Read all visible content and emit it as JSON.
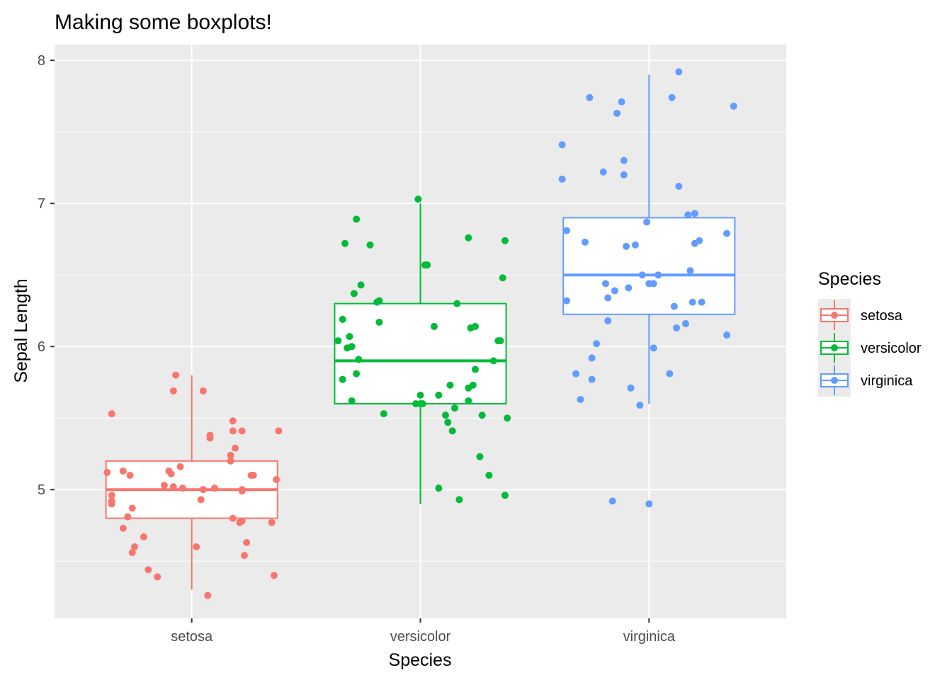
{
  "chart_data": {
    "type": "boxplot",
    "title": "Making some boxplots!",
    "xlabel": "Species",
    "ylabel": "Sepal Length",
    "categories": [
      "setosa",
      "versicolor",
      "virginica"
    ],
    "ylim": [
      4.1,
      8.11
    ],
    "yticks": [
      5,
      6,
      7,
      8
    ],
    "grid": true,
    "legend": {
      "title": "Species",
      "position": "right",
      "entries": [
        "setosa",
        "versicolor",
        "virginica"
      ]
    },
    "colors": {
      "setosa": "#F8766D",
      "versicolor": "#00BA38",
      "virginica": "#619CFF",
      "panel": "#EBEBEB",
      "grid": "#FFFFFF"
    },
    "boxes": [
      {
        "category": "setosa",
        "min": 4.3,
        "q1": 4.8,
        "median": 5.0,
        "q3": 5.2,
        "max": 5.8
      },
      {
        "category": "versicolor",
        "min": 4.9,
        "q1": 5.6,
        "median": 5.9,
        "q3": 6.3,
        "max": 7.0
      },
      {
        "category": "virginica",
        "min": 5.6,
        "q1": 6.225,
        "median": 6.5,
        "q3": 6.9,
        "max": 7.9
      }
    ],
    "points": {
      "setosa": [
        [
          0.63,
          5.12
        ],
        [
          0.65,
          5.53
        ],
        [
          0.65,
          4.96
        ],
        [
          0.65,
          4.9
        ],
        [
          0.65,
          4.92
        ],
        [
          0.7,
          5.13
        ],
        [
          0.7,
          4.73
        ],
        [
          0.72,
          4.81
        ],
        [
          0.73,
          5.1
        ],
        [
          0.74,
          4.87
        ],
        [
          0.74,
          4.56
        ],
        [
          0.75,
          4.6
        ],
        [
          0.79,
          4.67
        ],
        [
          0.81,
          4.44
        ],
        [
          0.85,
          4.39
        ],
        [
          0.88,
          5.03
        ],
        [
          0.9,
          5.13
        ],
        [
          0.91,
          5.11
        ],
        [
          0.92,
          5.02
        ],
        [
          0.92,
          5.69
        ],
        [
          0.93,
          5.8
        ],
        [
          0.95,
          5.16
        ],
        [
          1.02,
          4.6
        ],
        [
          1.04,
          4.93
        ],
        [
          1.05,
          5.0
        ],
        [
          1.05,
          5.69
        ],
        [
          1.07,
          4.26
        ],
        [
          1.08,
          5.36
        ],
        [
          1.08,
          5.38
        ],
        [
          1.1,
          5.01
        ],
        [
          1.17,
          5.24
        ],
        [
          1.17,
          5.2
        ],
        [
          1.18,
          5.48
        ],
        [
          1.18,
          5.41
        ],
        [
          1.19,
          5.29
        ],
        [
          1.18,
          4.8
        ],
        [
          1.21,
          4.77
        ],
        [
          1.22,
          4.78
        ],
        [
          1.22,
          5.41
        ],
        [
          1.22,
          5.0
        ],
        [
          1.24,
          4.63
        ],
        [
          1.22,
          4.99
        ],
        [
          1.23,
          4.54
        ],
        [
          1.26,
          5.1
        ],
        [
          1.27,
          5.1
        ],
        [
          1.35,
          4.77
        ],
        [
          1.36,
          4.4
        ],
        [
          1.37,
          5.07
        ],
        [
          1.38,
          5.41
        ],
        [
          0.96,
          5.01
        ]
      ],
      "versicolor": [
        [
          1.64,
          6.04
        ],
        [
          1.66,
          6.19
        ],
        [
          1.66,
          5.77
        ],
        [
          1.67,
          6.72
        ],
        [
          1.68,
          5.99
        ],
        [
          1.69,
          6.07
        ],
        [
          1.7,
          6.0
        ],
        [
          1.7,
          5.62
        ],
        [
          1.71,
          6.37
        ],
        [
          1.72,
          6.89
        ],
        [
          1.72,
          5.81
        ],
        [
          1.73,
          5.91
        ],
        [
          1.74,
          6.43
        ],
        [
          1.78,
          6.71
        ],
        [
          1.81,
          6.31
        ],
        [
          1.82,
          6.32
        ],
        [
          1.82,
          6.17
        ],
        [
          1.84,
          5.53
        ],
        [
          1.98,
          5.6
        ],
        [
          2.0,
          5.66
        ],
        [
          2.01,
          5.6
        ],
        [
          1.99,
          7.03
        ],
        [
          2.0,
          5.6
        ],
        [
          2.02,
          6.57
        ],
        [
          2.03,
          6.57
        ],
        [
          2.06,
          6.14
        ],
        [
          2.08,
          5.01
        ],
        [
          2.08,
          5.66
        ],
        [
          2.11,
          5.52
        ],
        [
          2.12,
          5.47
        ],
        [
          2.13,
          5.73
        ],
        [
          2.14,
          5.41
        ],
        [
          2.15,
          5.57
        ],
        [
          2.16,
          6.3
        ],
        [
          2.17,
          4.93
        ],
        [
          2.21,
          5.62
        ],
        [
          2.21,
          5.71
        ],
        [
          2.21,
          6.76
        ],
        [
          2.22,
          6.13
        ],
        [
          2.23,
          5.73
        ],
        [
          2.24,
          6.14
        ],
        [
          2.24,
          5.84
        ],
        [
          2.26,
          5.23
        ],
        [
          2.27,
          5.52
        ],
        [
          2.3,
          5.1
        ],
        [
          2.32,
          5.9
        ],
        [
          2.34,
          6.04
        ],
        [
          2.35,
          6.04
        ],
        [
          2.36,
          6.48
        ],
        [
          2.37,
          6.74
        ],
        [
          2.37,
          4.96
        ],
        [
          2.38,
          5.5
        ]
      ],
      "virginica": [
        [
          2.62,
          7.41
        ],
        [
          2.62,
          7.17
        ],
        [
          2.64,
          6.81
        ],
        [
          2.64,
          6.32
        ],
        [
          2.68,
          5.81
        ],
        [
          2.7,
          5.63
        ],
        [
          2.72,
          6.73
        ],
        [
          2.74,
          7.74
        ],
        [
          2.75,
          5.77
        ],
        [
          2.75,
          5.92
        ],
        [
          2.77,
          6.02
        ],
        [
          2.8,
          7.22
        ],
        [
          2.81,
          6.44
        ],
        [
          2.82,
          6.18
        ],
        [
          2.82,
          6.34
        ],
        [
          2.84,
          4.92
        ],
        [
          2.85,
          6.39
        ],
        [
          2.86,
          7.63
        ],
        [
          2.89,
          7.2
        ],
        [
          2.89,
          7.3
        ],
        [
          2.9,
          6.7
        ],
        [
          2.91,
          6.41
        ],
        [
          2.92,
          5.71
        ],
        [
          2.94,
          6.71
        ],
        [
          2.96,
          5.59
        ],
        [
          2.97,
          6.5
        ],
        [
          2.99,
          6.87
        ],
        [
          3.0,
          4.9
        ],
        [
          3.0,
          6.44
        ],
        [
          3.02,
          6.44
        ],
        [
          3.02,
          5.99
        ],
        [
          3.04,
          6.5
        ],
        [
          3.09,
          5.81
        ],
        [
          3.1,
          7.74
        ],
        [
          3.11,
          6.28
        ],
        [
          3.12,
          6.13
        ],
        [
          3.13,
          7.92
        ],
        [
          3.13,
          7.12
        ],
        [
          3.16,
          6.16
        ],
        [
          3.17,
          6.92
        ],
        [
          3.18,
          6.53
        ],
        [
          3.19,
          6.31
        ],
        [
          3.2,
          6.93
        ],
        [
          3.2,
          6.72
        ],
        [
          3.22,
          6.74
        ],
        [
          3.23,
          6.31
        ],
        [
          3.34,
          6.79
        ],
        [
          3.34,
          6.08
        ],
        [
          3.37,
          7.68
        ],
        [
          2.88,
          7.71
        ]
      ]
    }
  }
}
